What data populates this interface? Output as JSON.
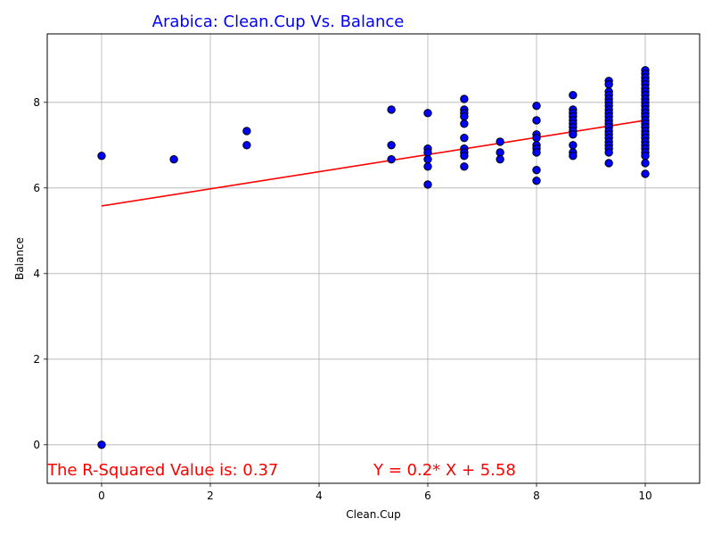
{
  "chart_data": {
    "type": "scatter",
    "title": "Arabica: Clean.Cup Vs. Balance",
    "xlabel": "Clean.Cup",
    "ylabel": "Balance",
    "xlim": [
      -1,
      11
    ],
    "ylim": [
      -0.9,
      9.6
    ],
    "xticks": [
      0,
      2,
      4,
      6,
      8,
      10
    ],
    "yticks": [
      0,
      2,
      4,
      6,
      8
    ],
    "grid": true,
    "colors": {
      "title": "#0000ff",
      "points_fill": "#0000ff",
      "points_edge": "#000000",
      "line": "#ff0000",
      "annotation": "#ff0000",
      "grid": "#b0b0b0"
    },
    "points": [
      [
        0,
        6.75
      ],
      [
        0,
        0
      ],
      [
        1.33,
        6.67
      ],
      [
        2.67,
        7.33
      ],
      [
        2.67,
        7.0
      ],
      [
        5.33,
        7.83
      ],
      [
        5.33,
        7.0
      ],
      [
        5.33,
        6.67
      ],
      [
        6,
        7.75
      ],
      [
        6,
        6.92
      ],
      [
        6,
        6.83
      ],
      [
        6,
        6.67
      ],
      [
        6,
        6.5
      ],
      [
        6,
        6.08
      ],
      [
        6.67,
        8.08
      ],
      [
        6.67,
        7.83
      ],
      [
        6.67,
        7.75
      ],
      [
        6.67,
        7.67
      ],
      [
        6.67,
        7.5
      ],
      [
        6.67,
        7.17
      ],
      [
        6.67,
        6.92
      ],
      [
        6.67,
        6.83
      ],
      [
        6.67,
        6.75
      ],
      [
        6.67,
        6.5
      ],
      [
        7.33,
        7.08
      ],
      [
        7.33,
        6.83
      ],
      [
        7.33,
        6.67
      ],
      [
        8,
        7.92
      ],
      [
        8,
        7.58
      ],
      [
        8,
        7.25
      ],
      [
        8,
        7.17
      ],
      [
        8,
        7.0
      ],
      [
        8,
        6.92
      ],
      [
        8,
        6.83
      ],
      [
        8,
        6.42
      ],
      [
        8,
        6.17
      ],
      [
        8.67,
        8.17
      ],
      [
        8.67,
        7.83
      ],
      [
        8.67,
        7.75
      ],
      [
        8.67,
        7.67
      ],
      [
        8.67,
        7.58
      ],
      [
        8.67,
        7.5
      ],
      [
        8.67,
        7.42
      ],
      [
        8.67,
        7.33
      ],
      [
        8.67,
        7.25
      ],
      [
        8.67,
        7.0
      ],
      [
        8.67,
        6.83
      ],
      [
        8.67,
        6.75
      ],
      [
        9.33,
        8.5
      ],
      [
        9.33,
        8.42
      ],
      [
        9.33,
        8.25
      ],
      [
        9.33,
        8.17
      ],
      [
        9.33,
        8.08
      ],
      [
        9.33,
        8.0
      ],
      [
        9.33,
        7.92
      ],
      [
        9.33,
        7.83
      ],
      [
        9.33,
        7.75
      ],
      [
        9.33,
        7.67
      ],
      [
        9.33,
        7.58
      ],
      [
        9.33,
        7.5
      ],
      [
        9.33,
        7.42
      ],
      [
        9.33,
        7.33
      ],
      [
        9.33,
        7.25
      ],
      [
        9.33,
        7.17
      ],
      [
        9.33,
        7.08
      ],
      [
        9.33,
        7.0
      ],
      [
        9.33,
        6.92
      ],
      [
        9.33,
        6.83
      ],
      [
        9.33,
        6.58
      ],
      [
        10,
        8.75
      ],
      [
        10,
        8.67
      ],
      [
        10,
        8.58
      ],
      [
        10,
        8.5
      ],
      [
        10,
        8.42
      ],
      [
        10,
        8.33
      ],
      [
        10,
        8.25
      ],
      [
        10,
        8.17
      ],
      [
        10,
        8.08
      ],
      [
        10,
        8.0
      ],
      [
        10,
        7.92
      ],
      [
        10,
        7.83
      ],
      [
        10,
        7.75
      ],
      [
        10,
        7.67
      ],
      [
        10,
        7.58
      ],
      [
        10,
        7.5
      ],
      [
        10,
        7.42
      ],
      [
        10,
        7.33
      ],
      [
        10,
        7.25
      ],
      [
        10,
        7.17
      ],
      [
        10,
        7.08
      ],
      [
        10,
        7.0
      ],
      [
        10,
        6.92
      ],
      [
        10,
        6.83
      ],
      [
        10,
        6.75
      ],
      [
        10,
        6.58
      ],
      [
        10,
        6.33
      ]
    ],
    "regression": {
      "slope": 0.2,
      "intercept": 5.58,
      "x_range": [
        0,
        10
      ],
      "r_squared": 0.37
    },
    "annotations": {
      "r_squared_text": "The R-Squared Value is: 0.37",
      "equation_text": "Y = 0.2* X + 5.58"
    }
  }
}
